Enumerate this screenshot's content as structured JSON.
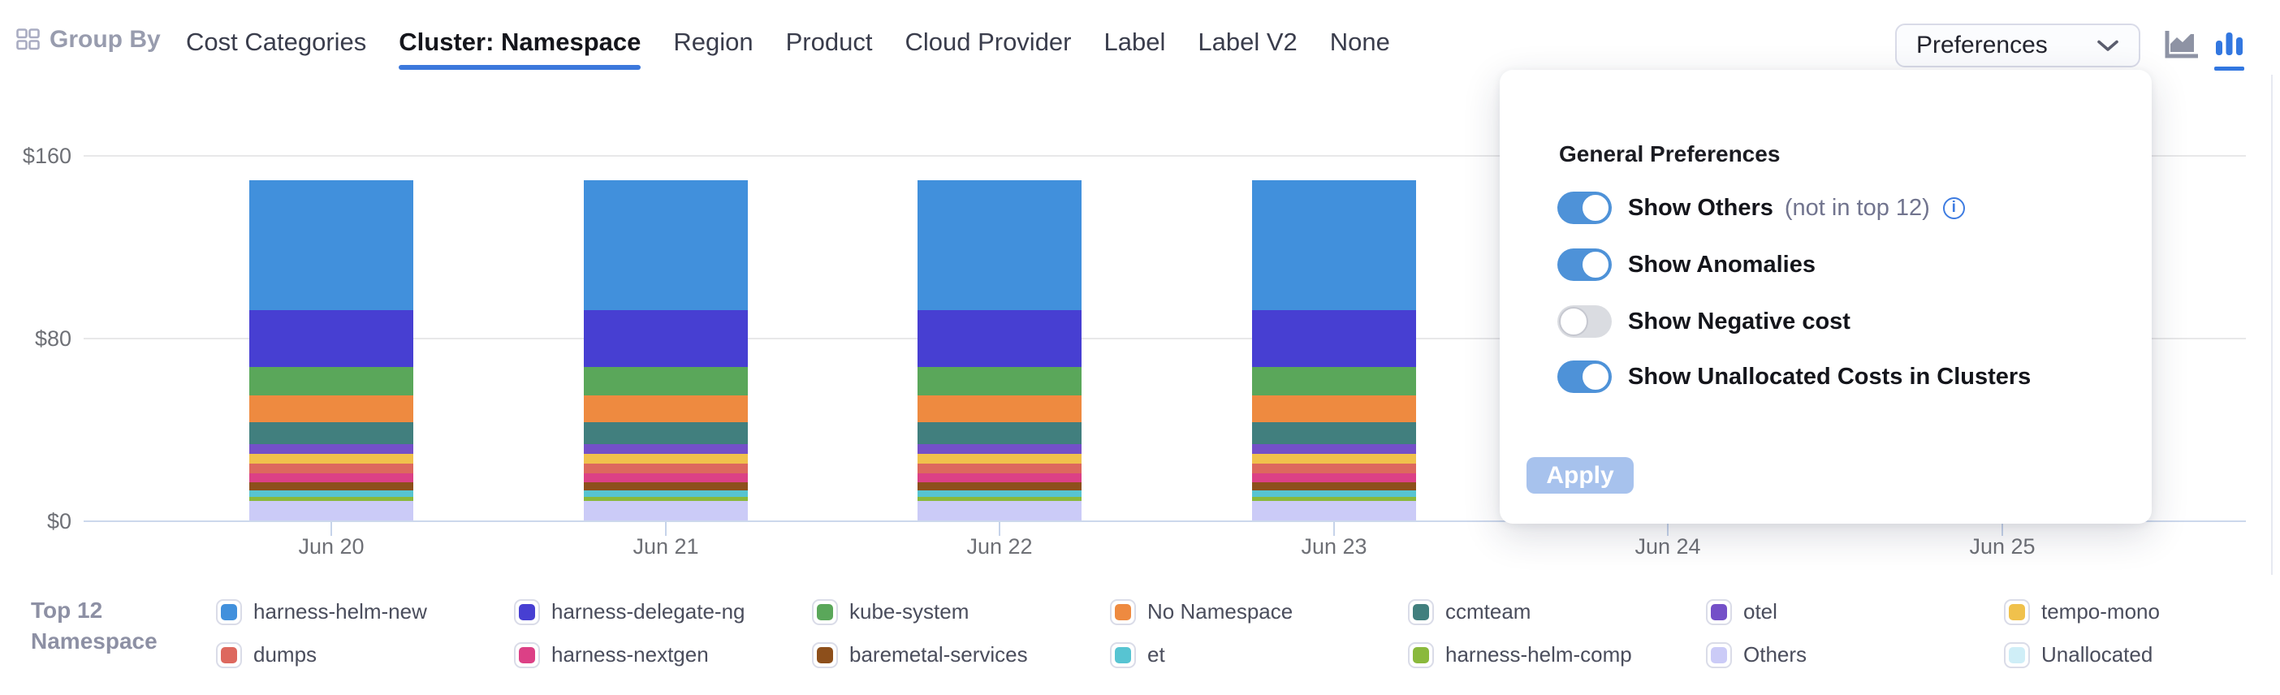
{
  "header": {
    "group_by_label": "Group By",
    "tabs": [
      {
        "label": "Cost Categories",
        "selected": false
      },
      {
        "label": "Cluster: Namespace",
        "selected": true
      },
      {
        "label": "Region",
        "selected": false
      },
      {
        "label": "Product",
        "selected": false
      },
      {
        "label": "Cloud Provider",
        "selected": false
      },
      {
        "label": "Label",
        "selected": false
      },
      {
        "label": "Label V2",
        "selected": false
      },
      {
        "label": "None",
        "selected": false
      }
    ],
    "preferences_label": "Preferences",
    "view_toggle": {
      "options": [
        "area-chart",
        "bar-chart"
      ],
      "selected": "bar-chart"
    }
  },
  "preferences_panel": {
    "title": "General Preferences",
    "toggles": [
      {
        "label": "Show Others",
        "suffix": "(not in top 12)",
        "info_icon": true,
        "on": true
      },
      {
        "label": "Show Anomalies",
        "suffix": "",
        "info_icon": false,
        "on": true
      },
      {
        "label": "Show Negative cost",
        "suffix": "",
        "info_icon": false,
        "on": false
      },
      {
        "label": "Show Unallocated Costs in Clusters",
        "suffix": "",
        "info_icon": false,
        "on": true
      }
    ],
    "apply_label": "Apply"
  },
  "legend": {
    "title_line1": "Top 12",
    "title_line2": "Namespace",
    "items": [
      {
        "label": "harness-helm-new",
        "color": "#4190dc"
      },
      {
        "label": "harness-delegate-ng",
        "color": "#473fd2"
      },
      {
        "label": "kube-system",
        "color": "#5aa75a"
      },
      {
        "label": "No Namespace",
        "color": "#ee8a40"
      },
      {
        "label": "ccmteam",
        "color": "#417f7e"
      },
      {
        "label": "otel",
        "color": "#7450c8"
      },
      {
        "label": "tempo-mono",
        "color": "#f0c14c"
      },
      {
        "label": "dumps",
        "color": "#dd685e"
      },
      {
        "label": "harness-nextgen",
        "color": "#dc4086"
      },
      {
        "label": "baremetal-services",
        "color": "#8d4f1b"
      },
      {
        "label": "et",
        "color": "#57c4d2"
      },
      {
        "label": "harness-helm-comp",
        "color": "#8ab93c"
      },
      {
        "label": "Others",
        "color": "#cbcbf7"
      },
      {
        "label": "Unallocated",
        "color": "#cfeef7"
      }
    ]
  },
  "chart_data": {
    "type": "bar",
    "stacked": true,
    "title": "",
    "xlabel": "",
    "ylabel": "",
    "categories": [
      "Jun 20",
      "Jun 21",
      "Jun 22",
      "Jun 23",
      "Jun 24",
      "Jun 25"
    ],
    "note": "Bars for Jun 24 and Jun 25 are hidden behind the open preferences popup (values null)",
    "y_ticks": [
      {
        "label": "$0",
        "value": 0
      },
      {
        "label": "$80",
        "value": 80
      },
      {
        "label": "$160",
        "value": 160
      }
    ],
    "ylim": [
      0,
      160
    ],
    "stack_order": "bottom_to_top",
    "series": [
      {
        "name": "Others",
        "color": "#cbcbf7",
        "values": [
          8.9,
          8.9,
          8.9,
          8.9,
          null,
          null
        ]
      },
      {
        "name": "harness-helm-comp",
        "color": "#8ab93c",
        "values": [
          1.8,
          1.8,
          1.8,
          1.8,
          null,
          null
        ]
      },
      {
        "name": "et",
        "color": "#57c4d2",
        "values": [
          2.8,
          2.8,
          2.8,
          2.8,
          null,
          null
        ]
      },
      {
        "name": "baremetal-services",
        "color": "#8d4f1b",
        "values": [
          3.5,
          3.5,
          3.5,
          3.5,
          null,
          null
        ]
      },
      {
        "name": "harness-nextgen",
        "color": "#dc4086",
        "values": [
          3.9,
          3.9,
          3.9,
          3.9,
          null,
          null
        ]
      },
      {
        "name": "dumps",
        "color": "#dd685e",
        "values": [
          4.3,
          4.3,
          4.3,
          4.3,
          null,
          null
        ]
      },
      {
        "name": "tempo-mono",
        "color": "#f0c14c",
        "values": [
          4.3,
          4.3,
          4.3,
          4.3,
          null,
          null
        ]
      },
      {
        "name": "otel",
        "color": "#7450c8",
        "values": [
          4.2,
          4.2,
          4.2,
          4.2,
          null,
          null
        ]
      },
      {
        "name": "ccmteam",
        "color": "#417f7e",
        "values": [
          9.6,
          9.6,
          9.6,
          9.6,
          null,
          null
        ]
      },
      {
        "name": "No Namespace",
        "color": "#ee8a40",
        "values": [
          11.7,
          11.7,
          11.7,
          11.7,
          null,
          null
        ]
      },
      {
        "name": "kube-system",
        "color": "#5aa75a",
        "values": [
          12.4,
          12.4,
          12.4,
          12.4,
          null,
          null
        ]
      },
      {
        "name": "harness-delegate-ng",
        "color": "#473fd2",
        "values": [
          25.2,
          25.2,
          25.2,
          25.2,
          null,
          null
        ]
      },
      {
        "name": "harness-helm-new",
        "color": "#4190dc",
        "values": [
          56.7,
          56.7,
          56.7,
          56.7,
          null,
          null
        ]
      }
    ]
  },
  "colors": {
    "accent_blue": "#3c78dc",
    "toggle_on": "#4e92d8",
    "toggle_off": "#dadce1",
    "axis_line": "#ccd8ec",
    "gridline": "#e8e8e9",
    "apply_disabled": "#a7c2ed"
  }
}
